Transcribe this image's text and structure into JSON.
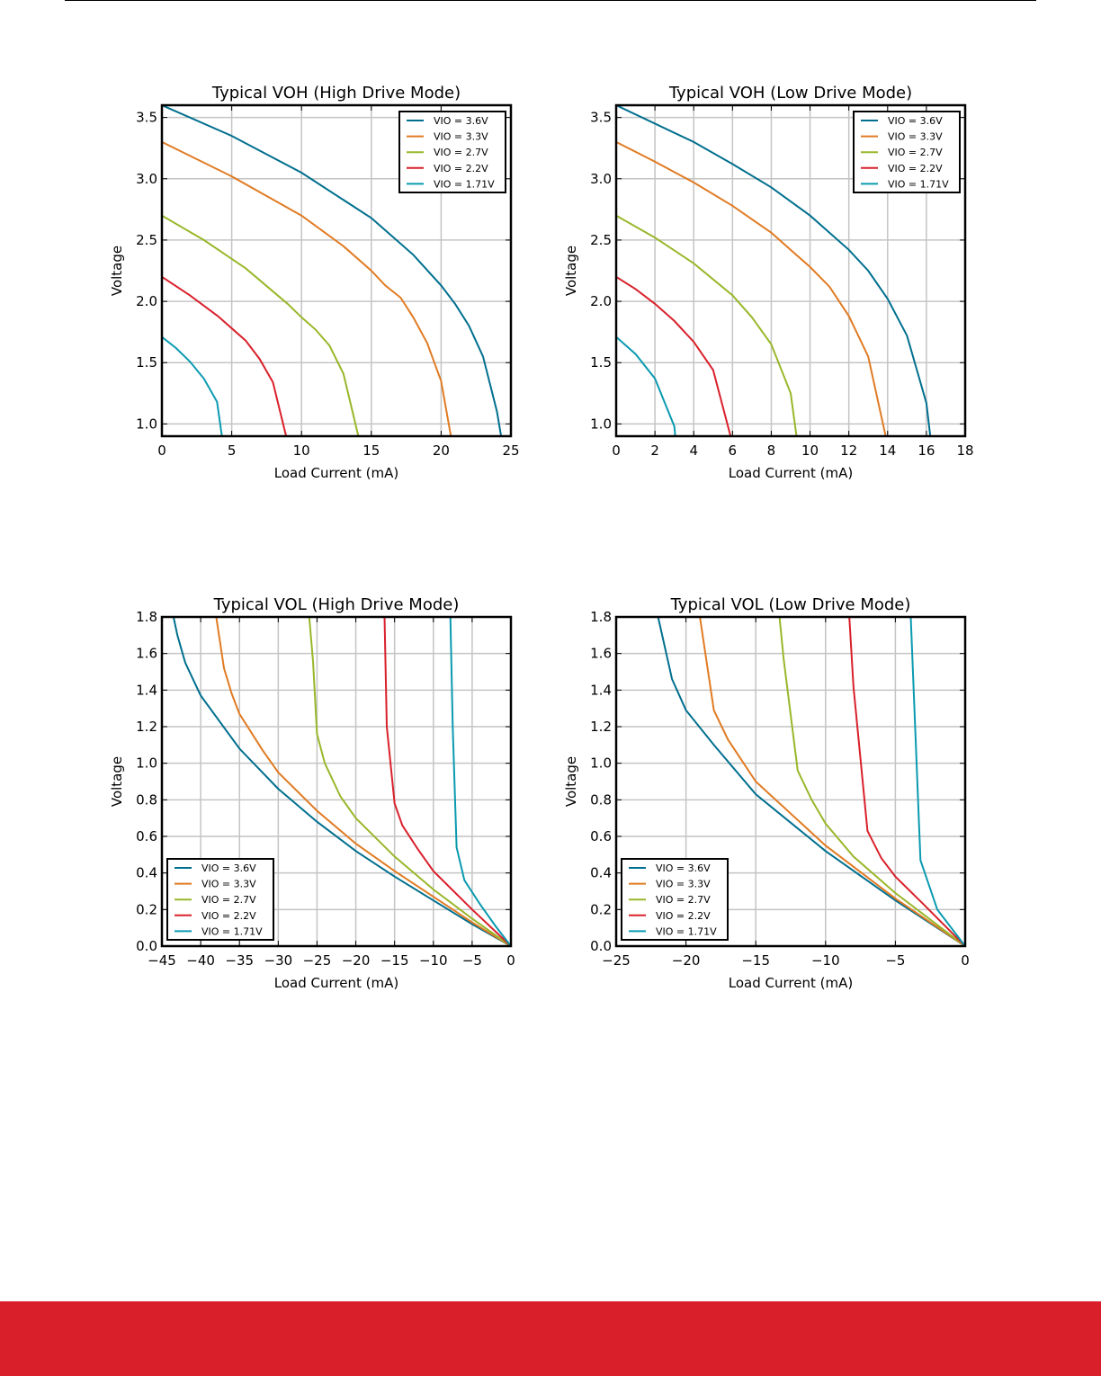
{
  "colors": {
    "footer": "#d91f2a",
    "grid": "#c4c4c4"
  },
  "chart_data": [
    {
      "type": "line",
      "title": "Typical VOH (High Drive Mode)",
      "xlabel": "Load Current (mA)",
      "ylabel": "Voltage",
      "xlim": [
        0,
        25
      ],
      "ylim": [
        0.9,
        3.6
      ],
      "xticks": [
        0,
        5,
        10,
        15,
        20,
        25
      ],
      "xtick_labels": [
        "0",
        "5",
        "10",
        "15",
        "20",
        "25"
      ],
      "yticks": [
        1.0,
        1.5,
        2.0,
        2.5,
        3.0,
        3.5
      ],
      "ytick_labels": [
        "1.0",
        "1.5",
        "2.0",
        "2.5",
        "3.0",
        "3.5"
      ],
      "grid": true,
      "legend": "top-right",
      "series": [
        {
          "name": "VIO = 3.6V",
          "color": "#006f8e",
          "x": [
            0,
            5,
            10,
            15,
            18,
            20,
            21,
            22,
            23,
            24,
            24.3
          ],
          "y": [
            3.6,
            3.35,
            3.05,
            2.68,
            2.38,
            2.13,
            1.98,
            1.8,
            1.55,
            1.1,
            0.9
          ]
        },
        {
          "name": "VIO = 3.3V",
          "color": "#e07b23",
          "x": [
            0,
            5,
            10,
            13,
            15,
            16,
            17.1,
            18,
            19,
            20,
            20.7
          ],
          "y": [
            3.3,
            3.02,
            2.7,
            2.45,
            2.25,
            2.13,
            2.03,
            1.87,
            1.66,
            1.35,
            0.9
          ]
        },
        {
          "name": "VIO = 2.7V",
          "color": "#99b72a",
          "x": [
            0,
            3,
            6,
            9,
            10,
            11,
            12,
            13,
            14.07
          ],
          "y": [
            2.7,
            2.5,
            2.27,
            1.98,
            1.87,
            1.77,
            1.64,
            1.41,
            0.9
          ]
        },
        {
          "name": "VIO = 2.2V",
          "color": "#d9202b",
          "x": [
            0,
            2,
            4,
            6,
            7,
            7.95,
            8.9
          ],
          "y": [
            2.2,
            2.05,
            1.88,
            1.68,
            1.53,
            1.34,
            0.9
          ]
        },
        {
          "name": "VIO = 1.71V",
          "color": "#0a9ab0",
          "x": [
            0,
            1,
            2,
            3,
            3.95,
            4.3
          ],
          "y": [
            1.71,
            1.62,
            1.51,
            1.37,
            1.18,
            0.9
          ]
        }
      ]
    },
    {
      "type": "line",
      "title": "Typical VOH (Low Drive Mode)",
      "xlabel": "Load Current (mA)",
      "ylabel": "Voltage",
      "xlim": [
        0,
        18
      ],
      "ylim": [
        0.9,
        3.6
      ],
      "xticks": [
        0,
        2,
        4,
        6,
        8,
        10,
        12,
        14,
        16,
        18
      ],
      "xtick_labels": [
        "0",
        "2",
        "4",
        "6",
        "8",
        "10",
        "12",
        "14",
        "16",
        "18"
      ],
      "yticks": [
        1.0,
        1.5,
        2.0,
        2.5,
        3.0,
        3.5
      ],
      "ytick_labels": [
        "1.0",
        "1.5",
        "2.0",
        "2.5",
        "3.0",
        "3.5"
      ],
      "grid": true,
      "legend": "top-right",
      "series": [
        {
          "name": "VIO = 3.6V",
          "color": "#006f8e",
          "x": [
            0,
            4,
            6,
            8,
            10,
            12,
            13,
            14,
            15,
            16,
            16.2
          ],
          "y": [
            3.6,
            3.3,
            3.12,
            2.93,
            2.7,
            2.42,
            2.25,
            2.02,
            1.72,
            1.17,
            0.9
          ]
        },
        {
          "name": "VIO = 3.3V",
          "color": "#e07b23",
          "x": [
            0,
            2,
            4,
            6,
            8,
            10,
            11,
            12,
            13,
            13.9
          ],
          "y": [
            3.3,
            3.14,
            2.97,
            2.78,
            2.56,
            2.28,
            2.12,
            1.88,
            1.55,
            0.9
          ]
        },
        {
          "name": "VIO = 2.7V",
          "color": "#99b72a",
          "x": [
            0,
            2,
            4,
            6,
            7,
            8,
            9,
            9.3
          ],
          "y": [
            2.7,
            2.52,
            2.31,
            2.05,
            1.87,
            1.65,
            1.25,
            0.9
          ]
        },
        {
          "name": "VIO = 2.2V",
          "color": "#d9202b",
          "x": [
            0,
            1,
            2,
            3,
            4,
            5,
            5.9
          ],
          "y": [
            2.2,
            2.1,
            1.98,
            1.84,
            1.67,
            1.44,
            0.9
          ]
        },
        {
          "name": "VIO = 1.71V",
          "color": "#0a9ab0",
          "x": [
            0,
            1,
            2,
            3,
            3.05
          ],
          "y": [
            1.71,
            1.57,
            1.37,
            0.98,
            0.9
          ]
        }
      ]
    },
    {
      "type": "line",
      "title": "Typical VOL (High Drive Mode)",
      "xlabel": "Load Current (mA)",
      "ylabel": "Voltage",
      "xlim": [
        -45,
        0
      ],
      "ylim": [
        0,
        1.8
      ],
      "xticks": [
        -45,
        -40,
        -35,
        -30,
        -25,
        -20,
        -15,
        -10,
        -5,
        0
      ],
      "xtick_labels": [
        "−45",
        "−40",
        "−35",
        "−30",
        "−25",
        "−20",
        "−15",
        "−10",
        "−5",
        "0"
      ],
      "yticks": [
        0,
        0.2,
        0.4,
        0.6,
        0.8,
        1.0,
        1.2,
        1.4,
        1.6,
        1.8
      ],
      "ytick_labels": [
        "0.0",
        "0.2",
        "0.4",
        "0.6",
        "0.8",
        "1.0",
        "1.2",
        "1.4",
        "1.6",
        "1.8"
      ],
      "grid": true,
      "legend": "bottom-left",
      "series": [
        {
          "name": "VIO = 3.6V",
          "color": "#006f8e",
          "x": [
            -43.5,
            -43,
            -42,
            -40,
            -35,
            -30,
            -25,
            -20,
            -15,
            -10,
            -5,
            0
          ],
          "y": [
            1.8,
            1.7,
            1.55,
            1.37,
            1.08,
            0.86,
            0.68,
            0.52,
            0.38,
            0.25,
            0.12,
            0
          ]
        },
        {
          "name": "VIO = 3.3V",
          "color": "#e07b23",
          "x": [
            -38,
            -37,
            -36,
            -35,
            -32,
            -30,
            -25,
            -20,
            -15,
            -10,
            -5,
            0
          ],
          "y": [
            1.8,
            1.52,
            1.38,
            1.27,
            1.07,
            0.95,
            0.74,
            0.56,
            0.41,
            0.27,
            0.13,
            0
          ]
        },
        {
          "name": "VIO = 2.7V",
          "color": "#99b72a",
          "x": [
            -26,
            -25.5,
            -25,
            -24,
            -22,
            -20,
            -15,
            -10,
            -5,
            0
          ],
          "y": [
            1.8,
            1.55,
            1.16,
            1.0,
            0.82,
            0.7,
            0.49,
            0.31,
            0.15,
            0
          ]
        },
        {
          "name": "VIO = 2.2V",
          "color": "#d9202b",
          "x": [
            -16.3,
            -16,
            -15,
            -14,
            -12,
            -10,
            -5,
            0
          ],
          "y": [
            1.8,
            1.2,
            0.78,
            0.66,
            0.53,
            0.41,
            0.2,
            0
          ]
        },
        {
          "name": "VIO = 1.71V",
          "color": "#0a9ab0",
          "x": [
            -7.8,
            -7.5,
            -7,
            -6,
            -4,
            -2,
            0
          ],
          "y": [
            1.8,
            1.2,
            0.54,
            0.36,
            0.23,
            0.11,
            0
          ]
        }
      ]
    },
    {
      "type": "line",
      "title": "Typical VOL (Low Drive Mode)",
      "xlabel": "Load Current (mA)",
      "ylabel": "Voltage",
      "xlim": [
        -25,
        0
      ],
      "ylim": [
        0,
        1.8
      ],
      "xticks": [
        -25,
        -20,
        -15,
        -10,
        -5,
        0
      ],
      "xtick_labels": [
        "−25",
        "−20",
        "−15",
        "−10",
        "−5",
        "0"
      ],
      "yticks": [
        0,
        0.2,
        0.4,
        0.6,
        0.8,
        1.0,
        1.2,
        1.4,
        1.6,
        1.8
      ],
      "ytick_labels": [
        "0.0",
        "0.2",
        "0.4",
        "0.6",
        "0.8",
        "1.0",
        "1.2",
        "1.4",
        "1.6",
        "1.8"
      ],
      "grid": true,
      "legend": "bottom-left",
      "series": [
        {
          "name": "VIO = 3.6V",
          "color": "#006f8e",
          "x": [
            -22,
            -21,
            -20,
            -18,
            -15,
            -10,
            -5,
            0
          ],
          "y": [
            1.8,
            1.46,
            1.29,
            1.1,
            0.83,
            0.52,
            0.25,
            0
          ]
        },
        {
          "name": "VIO = 3.3V",
          "color": "#e07b23",
          "x": [
            -19,
            -18,
            -17,
            -15,
            -10,
            -5,
            0
          ],
          "y": [
            1.8,
            1.29,
            1.13,
            0.9,
            0.55,
            0.26,
            0
          ]
        },
        {
          "name": "VIO = 2.7V",
          "color": "#99b72a",
          "x": [
            -13.3,
            -13,
            -12,
            -11,
            -10,
            -8,
            -5,
            0
          ],
          "y": [
            1.8,
            1.57,
            0.96,
            0.8,
            0.67,
            0.49,
            0.29,
            0
          ]
        },
        {
          "name": "VIO = 2.2V",
          "color": "#d9202b",
          "x": [
            -8.3,
            -8,
            -7,
            -6,
            -5,
            -3,
            0
          ],
          "y": [
            1.8,
            1.42,
            0.63,
            0.48,
            0.38,
            0.23,
            0
          ]
        },
        {
          "name": "VIO = 1.71V",
          "color": "#0a9ab0",
          "x": [
            -3.9,
            -3.2,
            -2,
            0
          ],
          "y": [
            1.8,
            0.47,
            0.2,
            0
          ]
        }
      ]
    }
  ]
}
